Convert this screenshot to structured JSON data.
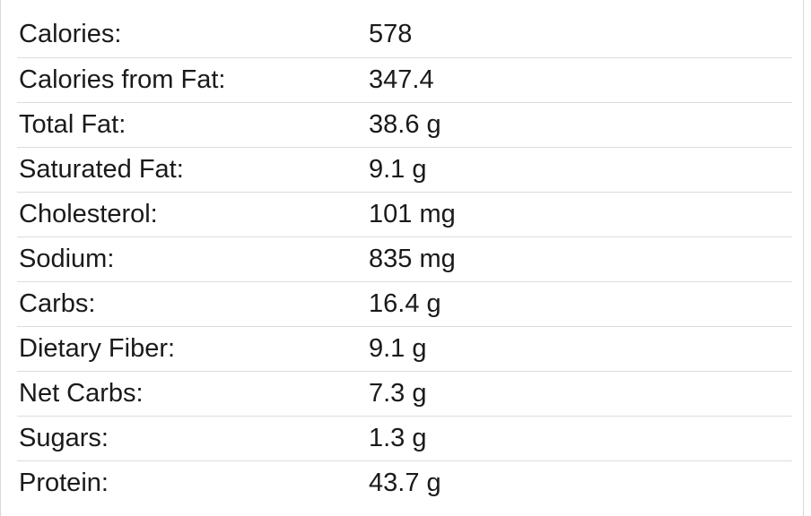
{
  "nutrition": {
    "rows": [
      {
        "label": "Calories:",
        "value": "578"
      },
      {
        "label": "Calories from Fat:",
        "value": "347.4"
      },
      {
        "label": "Total Fat:",
        "value": "38.6 g"
      },
      {
        "label": "Saturated Fat:",
        "value": "9.1 g"
      },
      {
        "label": "Cholesterol:",
        "value": "101 mg"
      },
      {
        "label": "Sodium:",
        "value": "835 mg"
      },
      {
        "label": "Carbs:",
        "value": "16.4 g"
      },
      {
        "label": "Dietary Fiber:",
        "value": "9.1 g"
      },
      {
        "label": "Net Carbs:",
        "value": "7.3 g"
      },
      {
        "label": "Sugars:",
        "value": "1.3 g"
      },
      {
        "label": "Protein:",
        "value": "43.7 g"
      }
    ]
  }
}
